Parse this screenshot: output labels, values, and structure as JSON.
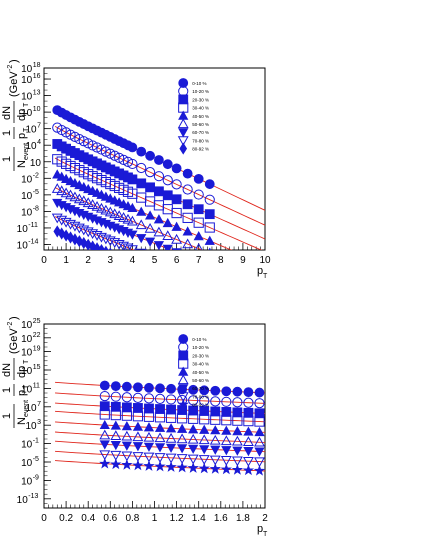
{
  "chart_data": [
    {
      "type": "scatter",
      "xlabel": "p",
      "xlabel_sub": "T",
      "ylabel_parts": [
        "1",
        "N",
        "event",
        "1",
        "p",
        "T",
        "dN",
        "dp",
        "T",
        "(GeV",
        "-2",
        ")"
      ],
      "xlim": [
        0,
        10
      ],
      "ylog": true,
      "ylim_exp": [
        -15,
        18
      ],
      "x_ticks": [
        "0",
        "1",
        "2",
        "3",
        "4",
        "5",
        "6",
        "7",
        "8",
        "9",
        "10"
      ],
      "y_ticks": [
        {
          "base": "10",
          "exp": "18"
        },
        {
          "base": "10",
          "exp": "16"
        },
        {
          "base": "10",
          "exp": "13"
        },
        {
          "base": "10",
          "exp": "10"
        },
        {
          "base": "10",
          "exp": "7"
        },
        {
          "base": "10",
          "exp": "4"
        },
        {
          "base": "10",
          "exp": ""
        },
        {
          "base": "10",
          "exp": "-2"
        },
        {
          "base": "10",
          "exp": "-5"
        },
        {
          "base": "10",
          "exp": "-8"
        },
        {
          "base": "10",
          "exp": "-11"
        },
        {
          "base": "10",
          "exp": "-14"
        }
      ],
      "y_tick_exps": [
        18,
        16,
        13,
        10,
        7,
        4,
        1,
        -2,
        -5,
        -8,
        -11,
        -14
      ],
      "x_points": [
        0.6,
        0.8,
        1.0,
        1.2,
        1.4,
        1.6,
        1.8,
        2.0,
        2.2,
        2.4,
        2.6,
        2.8,
        3.0,
        3.2,
        3.4,
        3.6,
        3.8,
        4.0,
        4.4,
        4.8,
        5.2,
        5.6,
        6.0,
        6.5,
        7.0,
        7.5
      ],
      "fit_range": [
        0.5,
        10
      ],
      "series": [
        {
          "name": "0-10 %",
          "marker": "circle-filled",
          "y_exp_at_0": 11.2,
          "slope": 1.9,
          "max_x": 7.5
        },
        {
          "name": "10-20 %",
          "marker": "circle-open",
          "y_exp_at_0": 8.0,
          "slope": 1.85,
          "max_x": 7.5
        },
        {
          "name": "20-30 %",
          "marker": "square-filled",
          "y_exp_at_0": 5.0,
          "slope": 1.8,
          "max_x": 7.5
        },
        {
          "name": "30-40 %",
          "marker": "square-open",
          "y_exp_at_0": 2.2,
          "slope": 1.75,
          "max_x": 7.5
        },
        {
          "name": "40-50 %",
          "marker": "triangle-filled",
          "y_exp_at_0": -0.6,
          "slope": 1.7,
          "max_x": 7.5
        },
        {
          "name": "50-60 %",
          "marker": "triangle-open",
          "y_exp_at_0": -3.2,
          "slope": 1.65,
          "max_x": 7.5
        },
        {
          "name": "60-70 %",
          "marker": "tridown-filled",
          "y_exp_at_0": -5.8,
          "slope": 1.6,
          "max_x": 7.5
        },
        {
          "name": "70-80 %",
          "marker": "tridown-open",
          "y_exp_at_0": -8.5,
          "slope": 1.6,
          "max_x": 7.0
        },
        {
          "name": "80-92 %",
          "marker": "diamond-filled",
          "y_exp_at_0": -11.0,
          "slope": 1.55,
          "max_x": 6.5
        }
      ]
    },
    {
      "type": "scatter",
      "xlabel": "p",
      "xlabel_sub": "T",
      "ylabel_parts": [
        "1",
        "N",
        "event",
        "1",
        "p",
        "T",
        "dN",
        "dp",
        "T",
        "(GeV",
        "-2",
        ")"
      ],
      "xlim": [
        0,
        2
      ],
      "ylog": true,
      "ylim_exp": [
        -15,
        25
      ],
      "x_ticks": [
        "0",
        "0.2",
        "0.4",
        "0.6",
        "0.8",
        "1",
        "1.2",
        "1.4",
        "1.6",
        "1.8",
        "2"
      ],
      "y_ticks": [
        {
          "base": "10",
          "exp": "25"
        },
        {
          "base": "10",
          "exp": "22"
        },
        {
          "base": "10",
          "exp": "19"
        },
        {
          "base": "10",
          "exp": "15"
        },
        {
          "base": "10",
          "exp": "11"
        },
        {
          "base": "10",
          "exp": "7"
        },
        {
          "base": "10",
          "exp": "3"
        },
        {
          "base": "10",
          "exp": "-1"
        },
        {
          "base": "10",
          "exp": "-5"
        },
        {
          "base": "10",
          "exp": "-9"
        },
        {
          "base": "10",
          "exp": "-13"
        }
      ],
      "y_tick_exps": [
        25,
        22,
        19,
        15,
        11,
        7,
        3,
        -1,
        -5,
        -9,
        -13
      ],
      "x_points": [
        0.55,
        0.65,
        0.75,
        0.85,
        0.95,
        1.05,
        1.15,
        1.25,
        1.35,
        1.45,
        1.55,
        1.65,
        1.75,
        1.85,
        1.95
      ],
      "fit_range": [
        0.1,
        2.0
      ],
      "series": [
        {
          "name": "0-10 %",
          "marker": "circle-filled",
          "y_exp_at_0": 11.8,
          "slope": 0.9
        },
        {
          "name": "10-20 %",
          "marker": "circle-open",
          "y_exp_at_0": 9.5,
          "slope": 0.9
        },
        {
          "name": "20-30 %",
          "marker": "square-filled",
          "y_exp_at_0": 7.3,
          "slope": 0.9
        },
        {
          "name": "30-40 %",
          "marker": "square-open",
          "y_exp_at_0": 5.5,
          "slope": 0.9
        },
        {
          "name": "40-50 %",
          "marker": "triangle-filled",
          "y_exp_at_0": 3.2,
          "slope": 0.9
        },
        {
          "name": "50-60 %",
          "marker": "triangle-open",
          "y_exp_at_0": 1.0,
          "slope": 0.9
        },
        {
          "name": "60-70 %",
          "marker": "tridown-filled",
          "y_exp_at_0": -1.0,
          "slope": 0.9
        },
        {
          "name": "70-80 %",
          "marker": "tridown-open",
          "y_exp_at_0": -3.2,
          "slope": 0.9
        },
        {
          "name": "80-92 %",
          "marker": "star-filled",
          "y_exp_at_0": -5.2,
          "slope": 0.9
        }
      ]
    }
  ],
  "colors": {
    "marker": "#1a1ad6",
    "fit": "#e0261c",
    "axis": "#000000"
  }
}
